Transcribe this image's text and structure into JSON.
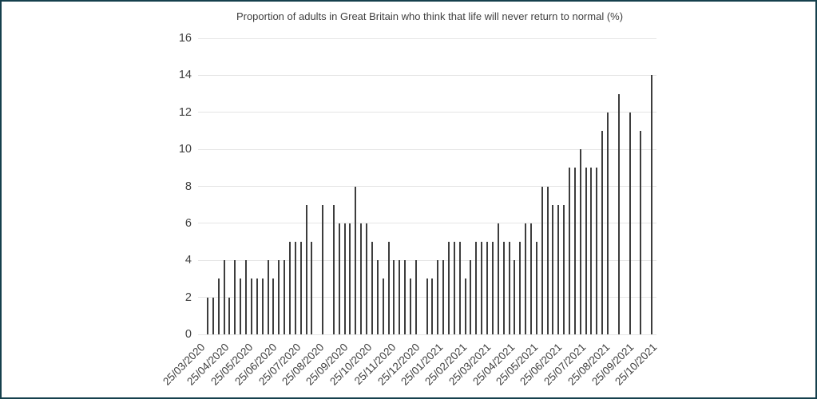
{
  "window": {
    "border_color": "#15404d",
    "background_color": "#ffffff"
  },
  "chart_data": {
    "type": "bar",
    "title": "Proportion of adults in Great Britain who think that life will never return to normal (%)",
    "xlabel": "",
    "ylabel": "",
    "ylim": [
      0,
      16
    ],
    "yticks": [
      0,
      2,
      4,
      6,
      8,
      10,
      12,
      14,
      16
    ],
    "grid": true,
    "legend": "none",
    "bar_color": "#3d3d3d",
    "gridline_color": "#e5e5e5",
    "text_color": "#404040",
    "x_tick_labels": [
      "25/03/2020",
      "25/04/2020",
      "25/05/2020",
      "25/06/2020",
      "25/07/2020",
      "25/08/2020",
      "25/09/2020",
      "25/10/2020",
      "25/11/2020",
      "25/12/2020",
      "25/01/2021",
      "25/02/2021",
      "25/03/2021",
      "25/04/2021",
      "25/05/2021",
      "25/06/2021",
      "25/07/2021",
      "25/08/2021",
      "25/09/2021",
      "25/10/2021"
    ],
    "values": [
      2,
      2,
      3,
      4,
      2,
      4,
      3,
      4,
      3,
      3,
      3,
      4,
      3,
      4,
      4,
      5,
      5,
      5,
      7,
      5,
      null,
      7,
      null,
      7,
      6,
      6,
      6,
      8,
      6,
      6,
      5,
      4,
      3,
      5,
      4,
      4,
      4,
      3,
      4,
      null,
      3,
      3,
      4,
      4,
      5,
      5,
      5,
      3,
      4,
      5,
      5,
      5,
      5,
      6,
      5,
      5,
      4,
      5,
      6,
      6,
      5,
      8,
      8,
      7,
      7,
      7,
      9,
      9,
      10,
      9,
      9,
      9,
      11,
      12,
      null,
      13,
      null,
      12,
      null,
      11,
      null,
      14
    ]
  }
}
